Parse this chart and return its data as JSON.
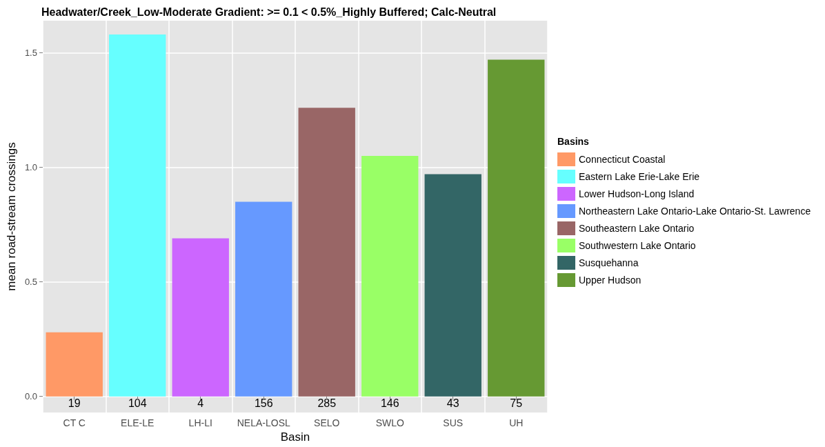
{
  "chart_data": {
    "type": "bar",
    "title": "Headwater/Creek_Low-Moderate Gradient: >= 0.1 < 0.5%_Highly Buffered; Calc-Neutral",
    "xlabel": "Basin",
    "ylabel": "mean road-stream crossings",
    "legend_title": "Basins",
    "legend": "right",
    "grid": true,
    "categories": [
      "CT C",
      "ELE-LE",
      "LH-LI",
      "NELA-LOSL",
      "SELO",
      "SWLO",
      "SUS",
      "UH"
    ],
    "series": [
      {
        "name": "Connecticut Coastal",
        "color": "#ff9966",
        "values": [
          0.28,
          null,
          null,
          null,
          null,
          null,
          null,
          null
        ]
      },
      {
        "name": "Eastern Lake Erie-Lake Erie",
        "color": "#66ffff",
        "values": [
          null,
          1.58,
          null,
          null,
          null,
          null,
          null,
          null
        ]
      },
      {
        "name": "Lower Hudson-Long Island",
        "color": "#cc66ff",
        "values": [
          null,
          null,
          0.69,
          null,
          null,
          null,
          null,
          null
        ]
      },
      {
        "name": "Northeastern Lake Ontario-Lake Ontario-St. Lawrence",
        "color": "#6699ff",
        "values": [
          null,
          null,
          null,
          0.85,
          null,
          null,
          null,
          null
        ]
      },
      {
        "name": "Southeastern Lake Ontario",
        "color": "#996666",
        "values": [
          null,
          null,
          null,
          null,
          1.26,
          null,
          null,
          null
        ]
      },
      {
        "name": "Southwestern Lake Ontario",
        "color": "#99ff66",
        "values": [
          null,
          null,
          null,
          null,
          null,
          1.05,
          null,
          null
        ]
      },
      {
        "name": "Susquehanna",
        "color": "#336666",
        "values": [
          null,
          null,
          null,
          null,
          null,
          null,
          0.97,
          null
        ]
      },
      {
        "name": "Upper Hudson",
        "color": "#669933",
        "values": [
          null,
          null,
          null,
          null,
          null,
          null,
          null,
          1.47
        ]
      }
    ],
    "ylim": [
      -0.07,
      1.64
    ],
    "yticks": [
      {
        "value": 0,
        "label": "0.0"
      },
      {
        "value": 0.5,
        "label": "0.5"
      },
      {
        "value": 1,
        "label": "1.0"
      },
      {
        "value": 1.5,
        "label": "1.5"
      }
    ],
    "annotations": [
      "19",
      "104",
      "4",
      "156",
      "285",
      "146",
      "43",
      "75"
    ]
  }
}
